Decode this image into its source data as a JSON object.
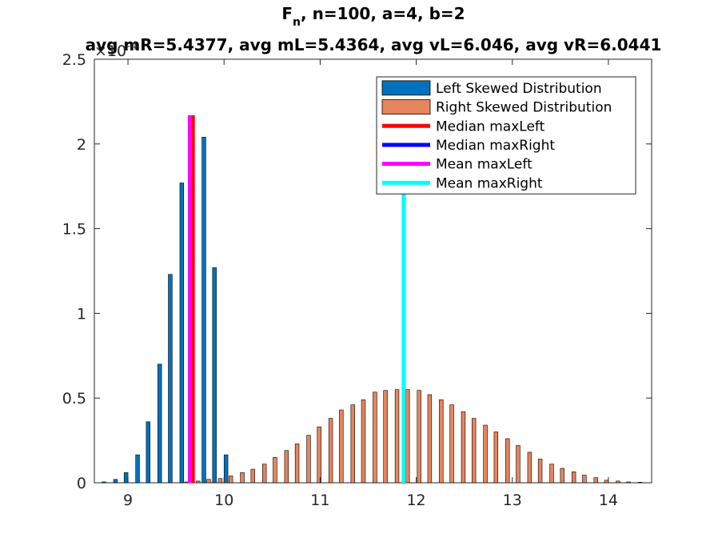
{
  "chart_data": {
    "type": "bar",
    "title_main": "F",
    "title_sub": "n",
    "title_rest": ", n=100, a=4, b=2",
    "subtitle": "avg mR=5.4377, avg mL=5.4364, avg vL=6.046, avg vR=6.0441",
    "y_exponent_label": "×10",
    "y_exponent_power": "-4",
    "xlim": [
      8.65,
      14.45
    ],
    "ylim": [
      0,
      2.5
    ],
    "x_ticks": [
      9,
      10,
      11,
      12,
      13,
      14
    ],
    "x_tick_labels": [
      "9",
      "10",
      "11",
      "12",
      "13",
      "14"
    ],
    "y_ticks": [
      0,
      0.5,
      1,
      1.5,
      2,
      2.5
    ],
    "y_tick_labels": [
      "0",
      "0.5",
      "1",
      "1.5",
      "2",
      "2.5"
    ],
    "bar_width": 0.04,
    "colors": {
      "left": "#0072BD",
      "right": "#E6855E",
      "median_left": "#FF0000",
      "median_right": "#0000FF",
      "mean_left": "#FF00FF",
      "mean_right": "#00FFFF"
    },
    "series": [
      {
        "name": "Left Skewed Distribution",
        "x": [
          8.75,
          8.87,
          8.98,
          9.1,
          9.21,
          9.33,
          9.44,
          9.56,
          9.67,
          9.79,
          9.9,
          10.02
        ],
        "values": [
          0.005,
          0.02,
          0.06,
          0.165,
          0.36,
          0.7,
          1.23,
          1.77,
          2.15,
          2.04,
          1.27,
          0.165
        ]
      },
      {
        "name": "Right Skewed Distribution",
        "x": [
          9.61,
          9.73,
          9.84,
          9.96,
          10.07,
          10.19,
          10.3,
          10.42,
          10.53,
          10.65,
          10.76,
          10.88,
          10.99,
          11.11,
          11.22,
          11.34,
          11.45,
          11.57,
          11.68,
          11.8,
          11.91,
          12.03,
          12.14,
          12.26,
          12.37,
          12.49,
          12.6,
          12.72,
          12.83,
          12.95,
          13.06,
          13.18,
          13.29,
          13.41,
          13.52,
          13.64,
          13.75,
          13.87,
          13.98,
          14.1,
          14.21,
          14.33
        ],
        "values": [
          0.005,
          0.01,
          0.02,
          0.025,
          0.04,
          0.06,
          0.08,
          0.11,
          0.15,
          0.19,
          0.23,
          0.28,
          0.33,
          0.38,
          0.43,
          0.46,
          0.49,
          0.535,
          0.545,
          0.55,
          0.55,
          0.545,
          0.52,
          0.49,
          0.46,
          0.42,
          0.38,
          0.34,
          0.3,
          0.26,
          0.22,
          0.18,
          0.14,
          0.11,
          0.085,
          0.065,
          0.045,
          0.03,
          0.015,
          0.01,
          0.005,
          0.003
        ]
      }
    ],
    "vertical_lines": [
      {
        "name": "Median maxLeft",
        "x": 9.675,
        "ymax": 2.17,
        "color": "#FF0000"
      },
      {
        "name": "Median maxRight",
        "x": 11.87,
        "ymax": 1.8,
        "color": "#0000FF"
      },
      {
        "name": "Mean maxLeft",
        "x": 9.645,
        "ymax": 2.17,
        "color": "#FF00FF"
      },
      {
        "name": "Mean maxRight",
        "x": 11.87,
        "ymax": 1.8,
        "color": "#00FFFF"
      }
    ],
    "legend": {
      "placement": "top-right",
      "entries": [
        {
          "label": "Left Skewed Distribution",
          "kind": "patch",
          "color": "#0072BD"
        },
        {
          "label": "Right Skewed Distribution",
          "kind": "patch",
          "color": "#E6855E"
        },
        {
          "label": "Median maxLeft",
          "kind": "line",
          "color": "#FF0000"
        },
        {
          "label": "Median maxRight",
          "kind": "line",
          "color": "#0000FF"
        },
        {
          "label": "Mean maxLeft",
          "kind": "line",
          "color": "#FF00FF"
        },
        {
          "label": "Mean maxRight",
          "kind": "line",
          "color": "#00FFFF"
        }
      ]
    },
    "grid": false
  }
}
